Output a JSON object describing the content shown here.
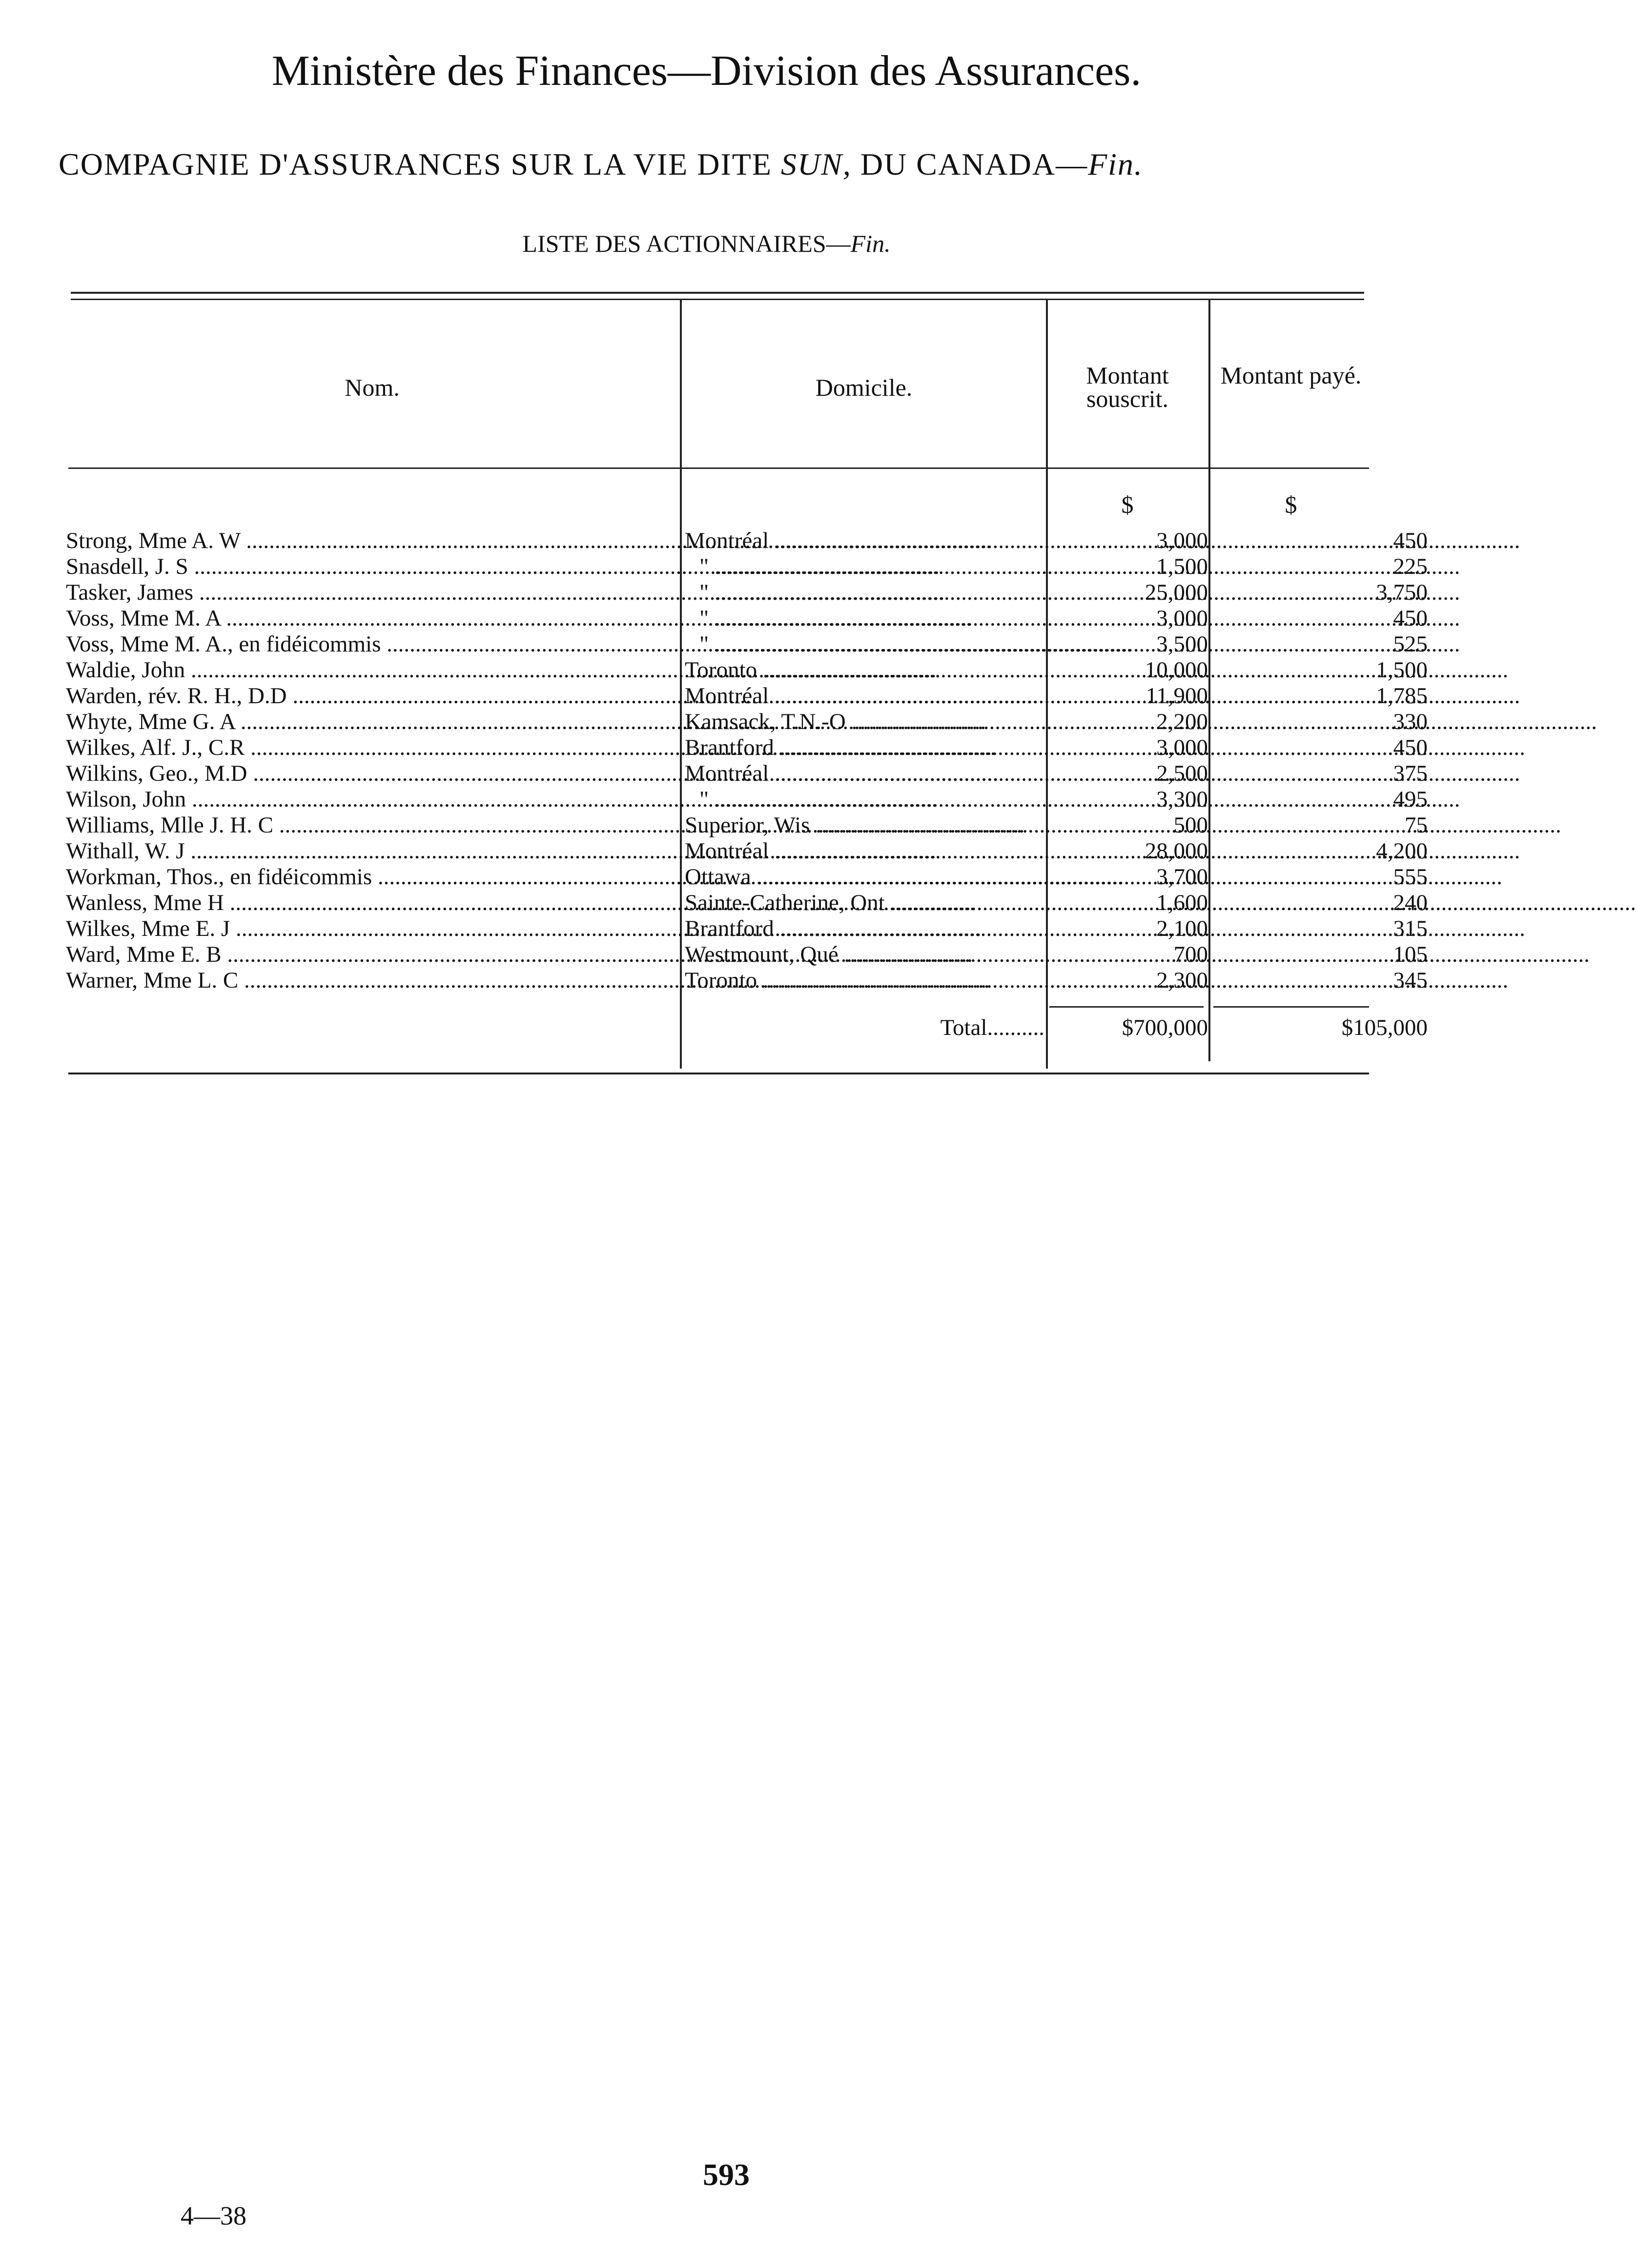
{
  "header": {
    "title": "Ministère des Finances—Division des Assurances.",
    "company_main": "COMPAGNIE D'ASSURANCES SUR LA VIE DITE ",
    "company_italic": "SUN,",
    "company_rest": " DU CANADA—",
    "company_fin": "Fin.",
    "list_main": "LISTE DES ACTIONNAIRES—",
    "list_fin": "Fin."
  },
  "table": {
    "columns": [
      "Nom.",
      "Domicile.",
      "Montant souscrit.",
      "Montant payé."
    ],
    "currency_symbol": "$",
    "rows": [
      {
        "nom": "Strong, Mme A. W",
        "domicile": "Montréal",
        "souscrit": "3,000",
        "paye": "450"
      },
      {
        "nom": "Snasdell, J. S",
        "domicile": "\"",
        "souscrit": "1,500",
        "paye": "225"
      },
      {
        "nom": "Tasker, James",
        "domicile": "\"",
        "souscrit": "25,000",
        "paye": "3,750"
      },
      {
        "nom": "Voss, Mme M. A",
        "domicile": "\"",
        "souscrit": "3,000",
        "paye": "450"
      },
      {
        "nom": "Voss, Mme M. A., en fidéicommis",
        "domicile": "\"",
        "souscrit": "3,500",
        "paye": "525"
      },
      {
        "nom": "Waldie, John",
        "domicile": "Toronto",
        "souscrit": "10,000",
        "paye": "1,500"
      },
      {
        "nom": "Warden, rév. R. H., D.D",
        "domicile": "Montréal",
        "souscrit": "11,900",
        "paye": "1,785"
      },
      {
        "nom": "Whyte, Mme G. A",
        "domicile": "Kamsack, T.N.-O",
        "souscrit": "2,200",
        "paye": "330"
      },
      {
        "nom": "Wilkes, Alf. J., C.R",
        "domicile": "Brantford",
        "souscrit": "3,000",
        "paye": "450"
      },
      {
        "nom": "Wilkins, Geo., M.D",
        "domicile": "Montréal",
        "souscrit": "2,500",
        "paye": "375"
      },
      {
        "nom": "Wilson, John",
        "domicile": "\"",
        "souscrit": "3,300",
        "paye": "495"
      },
      {
        "nom": "Williams, Mlle J. H. C",
        "domicile": "Superior, Wis",
        "souscrit": "500",
        "paye": "75"
      },
      {
        "nom": "Withall, W. J",
        "domicile": "Montréal",
        "souscrit": "28,000",
        "paye": "4,200"
      },
      {
        "nom": "Workman, Thos., en fidéicommis",
        "domicile": "Ottawa",
        "souscrit": "3,700",
        "paye": "555"
      },
      {
        "nom": "Wanless, Mme H",
        "domicile": "Sainte-Catherine, Ont",
        "souscrit": "1,600",
        "paye": "240"
      },
      {
        "nom": "Wilkes, Mme E. J",
        "domicile": "Brantford",
        "souscrit": "2,100",
        "paye": "315"
      },
      {
        "nom": "Ward, Mme E. B",
        "domicile": "Westmount, Qué",
        "souscrit": "700",
        "paye": "105"
      },
      {
        "nom": "Warner, Mme L. C",
        "domicile": "Toronto",
        "souscrit": "2,300",
        "paye": "345"
      }
    ],
    "total_label": "Total",
    "total_souscrit": "$700,000",
    "total_paye": "$105,000"
  },
  "footer": {
    "page_number": "593",
    "signature": "4—38"
  }
}
